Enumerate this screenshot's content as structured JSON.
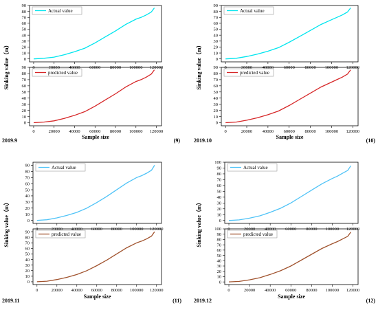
{
  "chart_data": [
    {
      "type": "line",
      "date_label": "2019.9",
      "number_label": "(9)",
      "ylabel": "Sinking value（m）",
      "xlabel": "Sample size",
      "xticks": [
        0,
        20000,
        40000,
        60000,
        80000,
        100000,
        120000
      ],
      "xlim": [
        -4000,
        125000
      ],
      "panels": [
        {
          "legend": "Actual value",
          "color": "#00e5ee",
          "ylim": [
            -5,
            90
          ],
          "yticks": [
            0,
            10,
            20,
            30,
            40,
            50,
            60,
            70,
            80,
            90
          ],
          "x": [
            0,
            10000,
            20000,
            30000,
            40000,
            50000,
            60000,
            70000,
            80000,
            90000,
            100000,
            105000,
            110000,
            115000,
            118000
          ],
          "y": [
            0,
            1,
            3,
            7,
            12,
            18,
            27,
            37,
            47,
            58,
            67,
            70,
            74,
            79,
            86
          ]
        },
        {
          "legend": "predicted value",
          "color": "#d62728",
          "ylim": [
            -5,
            90
          ],
          "yticks": [
            0,
            10,
            20,
            30,
            40,
            50,
            60,
            70,
            80,
            90
          ],
          "x": [
            0,
            10000,
            20000,
            30000,
            40000,
            50000,
            60000,
            70000,
            80000,
            90000,
            100000,
            105000,
            110000,
            115000,
            118000
          ],
          "y": [
            0,
            1,
            3,
            7,
            12,
            18,
            27,
            37,
            47,
            58,
            67,
            70,
            74,
            79,
            86
          ]
        }
      ]
    },
    {
      "type": "line",
      "date_label": "2019.10",
      "number_label": "(10)",
      "ylabel": "Sinking value（m）",
      "xlabel": "Sample size",
      "xticks": [
        0,
        20000,
        40000,
        60000,
        80000,
        100000,
        120000
      ],
      "xlim": [
        -4000,
        125000
      ],
      "panels": [
        {
          "legend": "Actual value",
          "color": "#00e5ee",
          "ylim": [
            -5,
            90
          ],
          "yticks": [
            0,
            10,
            20,
            30,
            40,
            50,
            60,
            70,
            80,
            90
          ],
          "x": [
            0,
            10000,
            20000,
            30000,
            40000,
            50000,
            60000,
            70000,
            80000,
            90000,
            100000,
            105000,
            110000,
            115000,
            118000
          ],
          "y": [
            0,
            1,
            4,
            8,
            13,
            19,
            28,
            38,
            48,
            58,
            66,
            70,
            74,
            79,
            86
          ]
        },
        {
          "legend": "predicted value",
          "color": "#d62728",
          "ylim": [
            -5,
            90
          ],
          "yticks": [
            0,
            10,
            20,
            30,
            40,
            50,
            60,
            70,
            80,
            90
          ],
          "x": [
            0,
            10000,
            20000,
            30000,
            40000,
            50000,
            60000,
            70000,
            80000,
            90000,
            100000,
            105000,
            110000,
            115000,
            118000
          ],
          "y": [
            0,
            1,
            4,
            8,
            13,
            19,
            28,
            38,
            48,
            58,
            66,
            70,
            74,
            79,
            86
          ]
        }
      ]
    },
    {
      "type": "line",
      "date_label": "2019.11",
      "number_label": "(11)",
      "ylabel": "Sinking value（m）",
      "xlabel": "Sample size",
      "xticks": [
        0,
        20000,
        40000,
        60000,
        80000,
        100000,
        120000
      ],
      "xlim": [
        -4000,
        125000
      ],
      "panels": [
        {
          "legend": "Actual value",
          "color": "#4fc3f7",
          "ylim": [
            -5,
            95
          ],
          "yticks": [
            0,
            10,
            20,
            30,
            40,
            50,
            60,
            70,
            80,
            90
          ],
          "x": [
            0,
            10000,
            20000,
            30000,
            40000,
            50000,
            60000,
            70000,
            80000,
            90000,
            100000,
            105000,
            110000,
            115000,
            118000
          ],
          "y": [
            0,
            1,
            4,
            8,
            13,
            20,
            29,
            39,
            50,
            61,
            70,
            73,
            77,
            82,
            90
          ]
        },
        {
          "legend": "predicted value",
          "color": "#a0522d",
          "ylim": [
            -5,
            95
          ],
          "yticks": [
            0,
            10,
            20,
            30,
            40,
            50,
            60,
            70,
            80,
            90
          ],
          "x": [
            0,
            10000,
            20000,
            30000,
            40000,
            50000,
            60000,
            70000,
            80000,
            90000,
            100000,
            105000,
            110000,
            115000,
            118000
          ],
          "y": [
            0,
            1,
            4,
            8,
            13,
            20,
            29,
            39,
            50,
            61,
            70,
            73,
            77,
            82,
            90
          ]
        }
      ]
    },
    {
      "type": "line",
      "date_label": "2019.12",
      "number_label": "(12)",
      "ylabel": "Sinking value（m）",
      "xlabel": "Sample size",
      "xticks": [
        0,
        20000,
        40000,
        60000,
        80000,
        100000,
        120000
      ],
      "xlim": [
        -4000,
        125000
      ],
      "panels": [
        {
          "legend": "Actual value",
          "color": "#4fc3f7",
          "ylim": [
            -5,
            100
          ],
          "yticks": [
            0,
            10,
            20,
            30,
            40,
            50,
            60,
            70,
            80,
            90,
            100
          ],
          "x": [
            0,
            10000,
            20000,
            30000,
            40000,
            50000,
            60000,
            70000,
            80000,
            90000,
            100000,
            105000,
            110000,
            115000,
            118000
          ],
          "y": [
            0,
            1,
            4,
            8,
            14,
            21,
            30,
            41,
            52,
            63,
            72,
            76,
            81,
            86,
            94
          ]
        },
        {
          "legend": "predicted value",
          "color": "#a0522d",
          "ylim": [
            -5,
            100
          ],
          "yticks": [
            0,
            10,
            20,
            30,
            40,
            50,
            60,
            70,
            80,
            90,
            100
          ],
          "x": [
            0,
            10000,
            20000,
            30000,
            40000,
            50000,
            60000,
            70000,
            80000,
            90000,
            100000,
            105000,
            110000,
            115000,
            118000
          ],
          "y": [
            0,
            1,
            4,
            8,
            14,
            21,
            30,
            41,
            52,
            63,
            72,
            76,
            81,
            86,
            94
          ]
        }
      ]
    }
  ]
}
